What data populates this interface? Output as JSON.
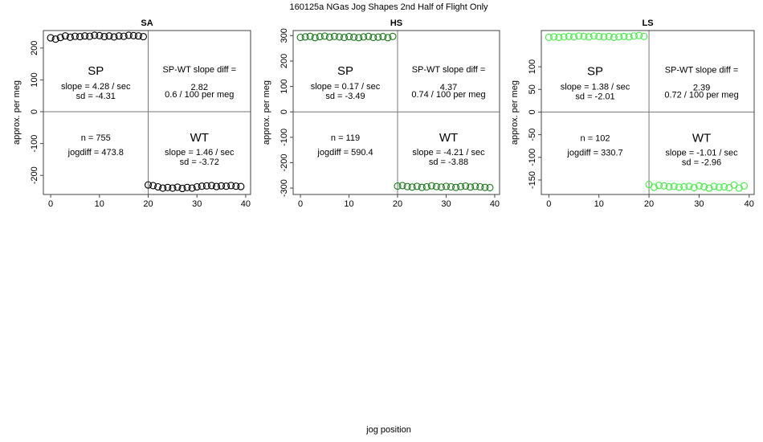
{
  "figure": {
    "title": "160125a   NGas Jog Shapes 2nd Half of Flight Only",
    "xlabel": "jog position"
  },
  "chart_data": [
    {
      "type": "scatter",
      "panel": "SA",
      "title": "SA",
      "ylabel": "approx. per meg",
      "color": "#000000",
      "xlim": [
        -1.5,
        41
      ],
      "ylim": [
        -260,
        255
      ],
      "xticks": [
        0,
        10,
        20,
        30,
        40
      ],
      "yticks": [
        -200,
        -100,
        0,
        100,
        200
      ],
      "divider_x": 20,
      "divider_y": 0,
      "series": [
        {
          "name": "SP",
          "x": [
            0,
            1,
            2,
            3,
            4,
            5,
            6,
            7,
            8,
            9,
            10,
            11,
            12,
            13,
            14,
            15,
            16,
            17,
            18,
            19
          ],
          "y": [
            232,
            228,
            233,
            238,
            234,
            237,
            236,
            238,
            237,
            240,
            239,
            236,
            238,
            235,
            238,
            237,
            240,
            239,
            238,
            236
          ]
        },
        {
          "name": "WT",
          "x": [
            20,
            21,
            22,
            23,
            24,
            25,
            26,
            27,
            28,
            29,
            30,
            31,
            32,
            33,
            34,
            35,
            36,
            37,
            38,
            39
          ],
          "y": [
            -230,
            -232,
            -236,
            -240,
            -238,
            -240,
            -237,
            -241,
            -238,
            -240,
            -236,
            -234,
            -233,
            -232,
            -235,
            -233,
            -234,
            -232,
            -234,
            -235
          ]
        }
      ],
      "annotations": {
        "sp_label": "SP",
        "sp_slope": "slope = 4.28 / sec",
        "sp_sd": "sd = -4.31",
        "diff_title": "SP-WT slope diff =",
        "diff_value": "2.82",
        "diff_per": "0.6 / 100 per meg",
        "n": "n = 755",
        "jogdiff": "jogdiff = 473.8",
        "wt_label": "WT",
        "wt_slope": "slope = 1.46 / sec",
        "wt_sd": "sd = -3.72"
      }
    },
    {
      "type": "scatter",
      "panel": "HS",
      "title": "HS",
      "ylabel": "approx. per meg",
      "color": "#1a7a1a",
      "xlim": [
        -1.5,
        41
      ],
      "ylim": [
        -325,
        320
      ],
      "xticks": [
        0,
        10,
        20,
        30,
        40
      ],
      "yticks": [
        -300,
        -200,
        -100,
        0,
        100,
        200,
        300
      ],
      "divider_x": 20,
      "divider_y": 0,
      "series": [
        {
          "name": "SP",
          "x": [
            0,
            1,
            2,
            3,
            4,
            5,
            6,
            7,
            8,
            9,
            10,
            11,
            12,
            13,
            14,
            15,
            16,
            17,
            18,
            19
          ],
          "y": [
            293,
            295,
            297,
            292,
            296,
            298,
            294,
            297,
            295,
            293,
            296,
            294,
            292,
            295,
            297,
            293,
            294,
            296,
            292,
            297
          ]
        },
        {
          "name": "WT",
          "x": [
            20,
            21,
            22,
            23,
            24,
            25,
            26,
            27,
            28,
            29,
            30,
            31,
            32,
            33,
            34,
            35,
            36,
            37,
            38,
            39
          ],
          "y": [
            -292,
            -290,
            -294,
            -296,
            -293,
            -297,
            -295,
            -291,
            -294,
            -296,
            -293,
            -295,
            -297,
            -294,
            -292,
            -296,
            -293,
            -295,
            -297,
            -298
          ]
        }
      ],
      "annotations": {
        "sp_label": "SP",
        "sp_slope": "slope = 0.17 / sec",
        "sp_sd": "sd = -3.49",
        "diff_title": "SP-WT slope diff =",
        "diff_value": "4.37",
        "diff_per": "0.74 / 100 per meg",
        "n": "n = 119",
        "jogdiff": "jogdiff = 590.4",
        "wt_label": "WT",
        "wt_slope": "slope = -4.21 / sec",
        "wt_sd": "sd = -3.88"
      }
    },
    {
      "type": "scatter",
      "panel": "LS",
      "title": "LS",
      "ylabel": "approx. per meg",
      "color": "#44ee44",
      "xlim": [
        -1.5,
        41
      ],
      "ylim": [
        -182,
        180
      ],
      "xticks": [
        0,
        10,
        20,
        30,
        40
      ],
      "yticks": [
        -150,
        -100,
        -50,
        0,
        50,
        100
      ],
      "divider_x": 20,
      "divider_y": 0,
      "series": [
        {
          "name": "SP",
          "x": [
            0,
            1,
            2,
            3,
            4,
            5,
            6,
            7,
            8,
            9,
            10,
            11,
            12,
            13,
            14,
            15,
            16,
            17,
            18,
            19
          ],
          "y": [
            165,
            166,
            165,
            166,
            167,
            166,
            168,
            167,
            166,
            168,
            167,
            166,
            167,
            165,
            166,
            167,
            166,
            168,
            169,
            167
          ]
        },
        {
          "name": "WT",
          "x": [
            20,
            21,
            22,
            23,
            24,
            25,
            26,
            27,
            28,
            29,
            30,
            31,
            32,
            33,
            34,
            35,
            36,
            37,
            38,
            39
          ],
          "y": [
            -160,
            -166,
            -162,
            -163,
            -165,
            -164,
            -166,
            -165,
            -164,
            -167,
            -163,
            -165,
            -168,
            -164,
            -166,
            -165,
            -167,
            -161,
            -168,
            -163
          ]
        }
      ],
      "annotations": {
        "sp_label": "SP",
        "sp_slope": "slope = 1.38 / sec",
        "sp_sd": "sd = -2.01",
        "diff_title": "SP-WT slope diff =",
        "diff_value": "2.39",
        "diff_per": "0.72 / 100 per meg",
        "n": "n = 102",
        "jogdiff": "jogdiff = 330.7",
        "wt_label": "WT",
        "wt_slope": "slope = -1.01 / sec",
        "wt_sd": "sd = -2.96"
      }
    }
  ]
}
